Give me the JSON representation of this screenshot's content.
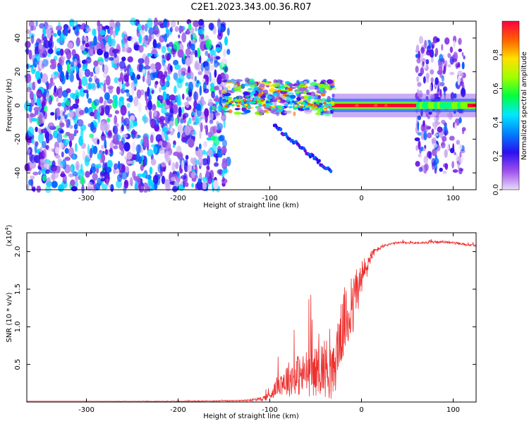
{
  "title": "C2E1.2023.343.00.36.R07",
  "colors": {
    "snr_line": "#ee3030",
    "axis": "#000000",
    "colormap": [
      "#e8dcf8",
      "#c9a8f0",
      "#9a55e6",
      "#6a10e0",
      "#2a10f0",
      "#0060ff",
      "#00d8ff",
      "#00ff80",
      "#80ff00",
      "#ffe000",
      "#ff6000",
      "#ff0030"
    ]
  },
  "chart_data": [
    {
      "type": "heatmap",
      "name": "spectrogram",
      "title": "C2E1.2023.343.00.36.R07",
      "xlabel": "Height of straight line (km)",
      "ylabel": "Frequency (Hz)",
      "xlim": [
        -365,
        125
      ],
      "ylim": [
        -50,
        50
      ],
      "xticks": [
        -300,
        -200,
        -100,
        0,
        100
      ],
      "yticks": [
        -40,
        -20,
        0,
        20,
        40
      ],
      "colorbar": {
        "label": "Normalized spectral amplitude",
        "range": [
          0.0,
          1.0
        ],
        "ticks": [
          "0.0",
          "0.2",
          "0.4",
          "0.6",
          "0.8"
        ],
        "tick_values": [
          0.0,
          0.2,
          0.4,
          0.6,
          0.8
        ]
      },
      "regions": [
        {
          "x": [
            -365,
            -145
          ],
          "freq": [
            -50,
            50
          ],
          "amplitude": 0.3,
          "character": "diffuse noise"
        },
        {
          "x": [
            -150,
            -30
          ],
          "freq": [
            -5,
            15
          ],
          "amplitude": 0.5,
          "character": "scattered signal"
        },
        {
          "x": [
            -30,
            125
          ],
          "freq": [
            -2,
            2
          ],
          "amplitude": 0.9,
          "character": "strong carrier"
        },
        {
          "x": [
            60,
            112
          ],
          "freq": [
            -40,
            40
          ],
          "amplitude": 0.25,
          "character": "noise band"
        }
      ],
      "grid": false,
      "legend": "colorbar-right"
    },
    {
      "type": "line",
      "name": "snr",
      "xlabel": "Height of straight line (km)",
      "ylabel": "SNR (10 * v/v)",
      "y_multiplier": "(x10^4)",
      "xlim": [
        -365,
        125
      ],
      "ylim": [
        0,
        2.25
      ],
      "xticks": [
        -300,
        -200,
        -100,
        0,
        100
      ],
      "yticks": [
        0.5,
        1.0,
        1.5,
        2.0
      ],
      "ytick_labels": [
        "0.5",
        "1.0",
        "1.5",
        "2.0"
      ],
      "series": [
        {
          "x": [
            -365,
            -300,
            -200,
            -130,
            -110,
            -100,
            -95,
            -90,
            -85,
            -80,
            -75,
            -70,
            -65,
            -60,
            -55,
            -50,
            -45,
            -40,
            -35,
            -30,
            -25,
            -20,
            -18,
            -15,
            -12,
            -10,
            -8,
            -5,
            -3,
            0,
            3,
            5,
            8,
            10,
            15,
            20,
            25,
            30,
            40,
            50,
            60,
            70,
            80,
            90,
            100,
            110,
            125
          ],
          "y": [
            0.01,
            0.01,
            0.01,
            0.02,
            0.04,
            0.1,
            0.18,
            0.28,
            0.32,
            0.35,
            0.38,
            0.42,
            0.4,
            0.45,
            0.5,
            0.46,
            0.52,
            0.55,
            0.5,
            0.45,
            0.9,
            1.05,
            1.2,
            1.15,
            1.3,
            1.2,
            1.45,
            1.6,
            1.55,
            1.7,
            1.75,
            1.8,
            1.9,
            1.95,
            2.02,
            2.05,
            2.08,
            2.1,
            2.12,
            2.12,
            2.12,
            2.12,
            2.13,
            2.13,
            2.12,
            2.1,
            2.08
          ],
          "noise": [
            0,
            0,
            0.005,
            0.01,
            0.03,
            0.08,
            0.12,
            0.18,
            0.25,
            0.3,
            0.3,
            0.35,
            0.35,
            0.4,
            0.45,
            0.4,
            0.45,
            0.5,
            0.5,
            0.45,
            0.55,
            0.5,
            0.6,
            0.55,
            0.5,
            0.5,
            0.45,
            0.4,
            0.35,
            0.3,
            0.3,
            0.25,
            0.15,
            0.1,
            0.05,
            0.03,
            0.02,
            0.02,
            0.02,
            0.02,
            0.02,
            0.02,
            0.02,
            0.02,
            0.02,
            0.02,
            0.02
          ]
        }
      ],
      "grid": false
    }
  ]
}
